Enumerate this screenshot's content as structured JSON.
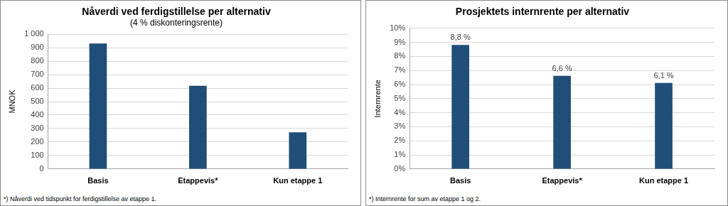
{
  "chart_data": [
    {
      "type": "bar",
      "title": "Nåverdi ved ferdigstillelse per alternativ",
      "subtitle": "(4 % diskonteringsrente)",
      "y_label": "MNOK",
      "categories": [
        "Basis",
        "Etappevis*",
        "Kun etappe 1"
      ],
      "values": [
        930,
        615,
        270
      ],
      "color": "#1f4e79",
      "ylim": [
        0,
        1000
      ],
      "yticks": [
        0,
        100,
        200,
        300,
        400,
        500,
        600,
        700,
        800,
        900,
        {
          "value": 1000,
          "label": "1 000"
        }
      ],
      "grid": true,
      "data_labels": false,
      "footnote": "*) Nåverdi ved tidspunkt for ferdigstillelse av etappe 1."
    },
    {
      "type": "bar",
      "title": "Prosjektets internrente per alternativ",
      "y_label": "Internrente",
      "categories": [
        "Basis",
        "Etappevis*",
        "Kun etappe 1"
      ],
      "values": [
        8.8,
        6.6,
        6.1
      ],
      "value_labels": [
        "8,8 %",
        "6,6 %",
        "6,1 %"
      ],
      "color": "#1f4e79",
      "ylim": [
        0,
        10
      ],
      "yticks": [
        {
          "value": 0,
          "label": "0%"
        },
        {
          "value": 1,
          "label": "1%"
        },
        {
          "value": 2,
          "label": "2%"
        },
        {
          "value": 3,
          "label": "3%"
        },
        {
          "value": 4,
          "label": "4%"
        },
        {
          "value": 5,
          "label": "5%"
        },
        {
          "value": 6,
          "label": "6%"
        },
        {
          "value": 7,
          "label": "7%"
        },
        {
          "value": 8,
          "label": "8%"
        },
        {
          "value": 9,
          "label": "9%"
        },
        {
          "value": 10,
          "label": "10%"
        }
      ],
      "grid": true,
      "data_labels": true,
      "footnote": "*) Internrente for sum av etappe 1 og 2."
    }
  ]
}
